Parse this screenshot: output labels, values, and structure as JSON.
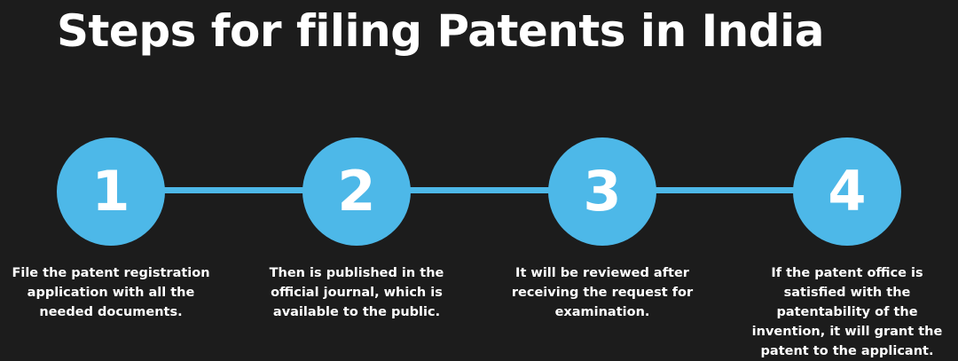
{
  "title": "Steps for filing Patents in India",
  "colors": {
    "background": "#1c1c1c",
    "accent": "#4db8e8",
    "text": "#ffffff"
  },
  "steps": [
    {
      "number": "1",
      "description": "File the patent registration application with all the needed documents."
    },
    {
      "number": "2",
      "description": "Then is published in the official journal, which is available to the public."
    },
    {
      "number": "3",
      "description": "It will be reviewed after receiving the request for examination."
    },
    {
      "number": "4",
      "description": "If the patent office is satisfied with the patentability of the invention, it will grant the patent to the applicant."
    }
  ]
}
